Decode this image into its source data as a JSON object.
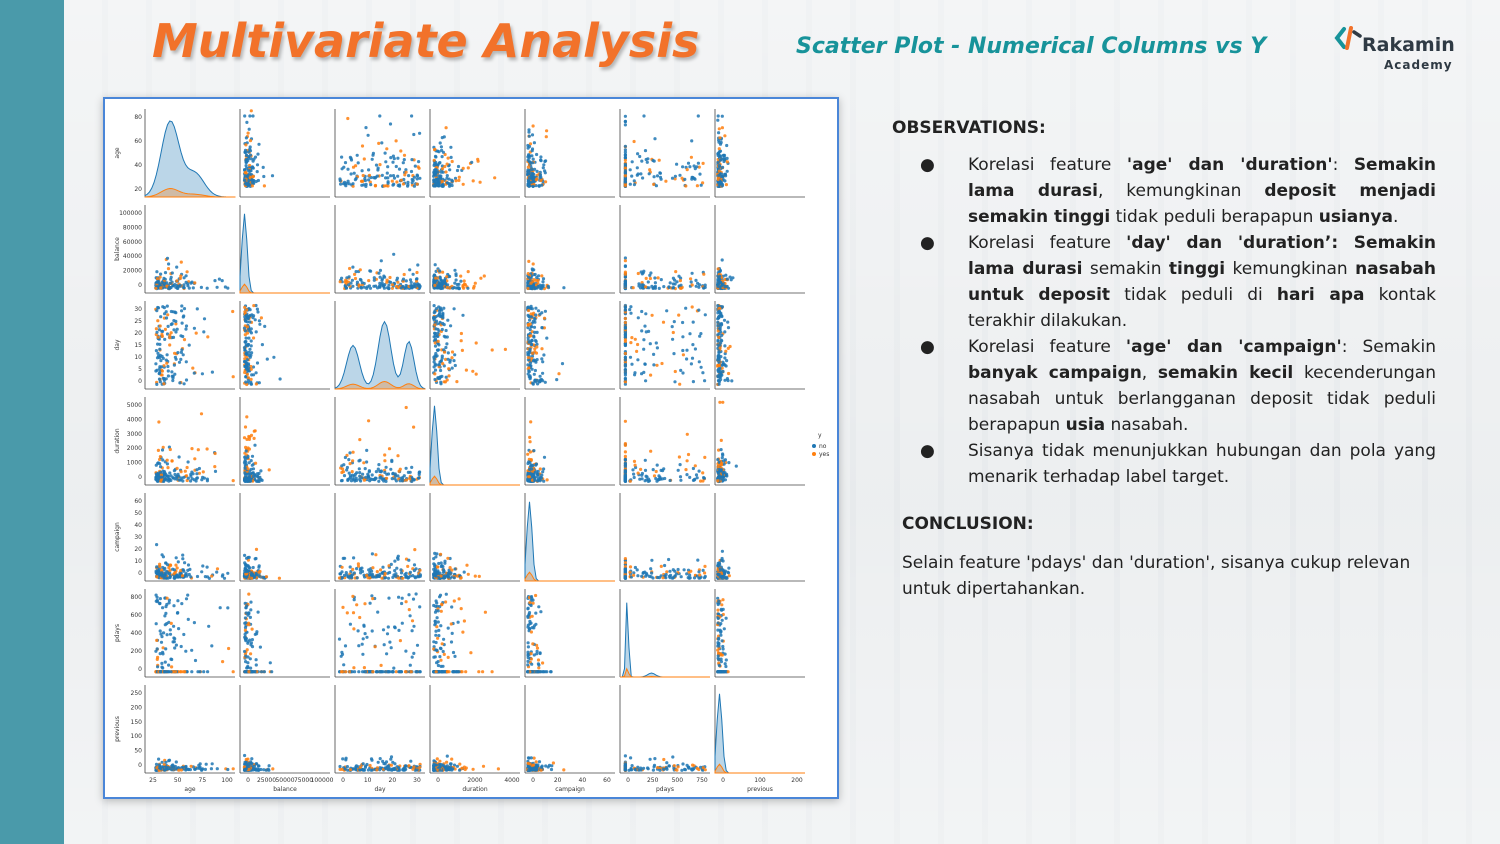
{
  "header": {
    "title": "Multivariate Analysis",
    "subtitle": "Scatter Plot - Numerical Columns vs Y",
    "logo_name": "Rakamin",
    "logo_sub": "Academy"
  },
  "colors": {
    "accent_orange": "#f2722a",
    "accent_teal": "#17939a",
    "sidebar": "#4a9aaa",
    "series_no": "#1f77b4",
    "series_yes": "#ff7f0e"
  },
  "observations": {
    "heading": "OBSERVATIONS:",
    "bullet": "●",
    "items": [
      [
        {
          "t": "Korelasi feature "
        },
        {
          "t": "'age' dan 'duration'",
          "b": true
        },
        {
          "t": ": "
        },
        {
          "t": "Semakin lama durasi",
          "b": true
        },
        {
          "t": ", kemungkinan "
        },
        {
          "t": "deposit menjadi semakin tinggi",
          "b": true
        },
        {
          "t": " tidak peduli berapapun "
        },
        {
          "t": "usianya",
          "b": true
        },
        {
          "t": "."
        }
      ],
      [
        {
          "t": "Korelasi feature "
        },
        {
          "t": "'day' dan 'duration’: Semakin lama durasi",
          "b": true
        },
        {
          "t": " semakin "
        },
        {
          "t": "tinggi",
          "b": true
        },
        {
          "t": " kemungkinan "
        },
        {
          "t": "nasabah untuk deposit",
          "b": true
        },
        {
          "t": " tidak peduli di "
        },
        {
          "t": "hari apa",
          "b": true
        },
        {
          "t": " kontak terakhir dilakukan."
        }
      ],
      [
        {
          "t": "Korelasi feature "
        },
        {
          "t": "'age' dan 'campaign'",
          "b": true
        },
        {
          "t": ": Semakin "
        },
        {
          "t": "banyak campaign",
          "b": true
        },
        {
          "t": ", "
        },
        {
          "t": "semakin kecil",
          "b": true
        },
        {
          "t": " kecenderungan nasabah untuk berlangganan deposit tidak peduli berapapun "
        },
        {
          "t": "usia",
          "b": true
        },
        {
          "t": " nasabah."
        }
      ],
      [
        {
          "t": "Sisanya tidak menunjukkan hubungan dan pola yang menarik terhadap label target."
        }
      ]
    ]
  },
  "conclusion": {
    "heading": "CONCLUSION:",
    "text": "Selain feature 'pdays' dan 'duration', sisanya cukup relevan untuk dipertahankan."
  },
  "chart_data": {
    "type": "scatter",
    "subtype": "pairplot",
    "variables": [
      "age",
      "balance",
      "day",
      "duration",
      "campaign",
      "pdays",
      "previous"
    ],
    "hue": "y",
    "series": [
      {
        "name": "no",
        "color": "#1f77b4"
      },
      {
        "name": "yes",
        "color": "#ff7f0e"
      }
    ],
    "legend": {
      "title": "y",
      "entries": [
        "no",
        "yes"
      ],
      "placement": "right"
    },
    "ranges": {
      "age": [
        15,
        100
      ],
      "balance": [
        -10000,
        105000
      ],
      "day": [
        -1,
        33
      ],
      "duration": [
        -200,
        5100
      ],
      "campaign": [
        -2,
        66
      ],
      "pdays": [
        -80,
        900
      ],
      "previous": [
        -8,
        290
      ]
    },
    "x_ticks": {
      "age": [
        "25",
        "50",
        "75",
        "100"
      ],
      "balance": [
        "0",
        "25000",
        "50000",
        "75000",
        "100000"
      ],
      "day": [
        "0",
        "10",
        "20",
        "30"
      ],
      "duration": [
        "0",
        "2000",
        "4000"
      ],
      "campaign": [
        "0",
        "20",
        "40",
        "60"
      ],
      "pdays": [
        "0",
        "250",
        "500",
        "750"
      ],
      "previous": [
        "0",
        "100",
        "200"
      ]
    },
    "y_ticks": {
      "age": [
        "20",
        "40",
        "60",
        "80"
      ],
      "balance": [
        "0",
        "20000",
        "40000",
        "60000",
        "80000",
        "100000"
      ],
      "day": [
        "0",
        "5",
        "10",
        "15",
        "20",
        "25",
        "30"
      ],
      "duration": [
        "0",
        "1000",
        "2000",
        "3000",
        "4000",
        "5000"
      ],
      "campaign": [
        "0",
        "10",
        "20",
        "30",
        "40",
        "50",
        "60"
      ],
      "pdays": [
        "0",
        "200",
        "400",
        "600",
        "800"
      ],
      "previous": [
        "0",
        "50",
        "100",
        "150",
        "200",
        "250"
      ]
    },
    "diagonal": "kde"
  }
}
